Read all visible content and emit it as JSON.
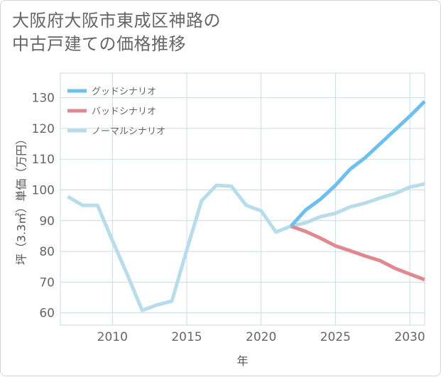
{
  "title": "大阪府大阪市東成区神路の\n中古戸建ての価格推移",
  "chart_data": {
    "type": "line",
    "title": "大阪府大阪市東成区神路の中古戸建ての価格推移",
    "xlabel": "年",
    "ylabel": "坪（3.3㎡）単価（万円）",
    "xlim": [
      2006.5,
      2031
    ],
    "ylim": [
      56,
      138
    ],
    "xticks": [
      2010,
      2015,
      2020,
      2025,
      2030
    ],
    "yticks": [
      60,
      70,
      80,
      90,
      100,
      110,
      120,
      130
    ],
    "grid": true,
    "legend_position": "top-left",
    "series": [
      {
        "name": "グッドシナリオ",
        "color": "#6dbfee",
        "x": [
          2022,
          2023,
          2024,
          2025,
          2026,
          2027,
          2028,
          2029,
          2030,
          2031
        ],
        "values": [
          88.2,
          93.5,
          97,
          101.5,
          106.8,
          110.5,
          115,
          119.5,
          124,
          128.8
        ]
      },
      {
        "name": "バッドシナリオ",
        "color": "#de8a90",
        "x": [
          2022,
          2023,
          2024,
          2025,
          2026,
          2027,
          2028,
          2029,
          2030,
          2031
        ],
        "values": [
          88.2,
          86.5,
          84.3,
          81.8,
          80.2,
          78.5,
          77,
          74.5,
          72.6,
          70.8
        ]
      },
      {
        "name": "ノーマルシナリオ",
        "color": "#b7dcea",
        "x": [
          2007,
          2008,
          2009,
          2010,
          2011,
          2012,
          2013,
          2014,
          2015,
          2016,
          2017,
          2018,
          2019,
          2020,
          2021,
          2022,
          2023,
          2024,
          2025,
          2026,
          2027,
          2028,
          2029,
          2030,
          2031
        ],
        "values": [
          97.8,
          95,
          95,
          83.5,
          72.5,
          60.8,
          62.6,
          63.8,
          80.5,
          96.5,
          101.5,
          101.2,
          95,
          93.2,
          86.3,
          88.2,
          89.3,
          91.3,
          92.4,
          94.5,
          95.7,
          97.4,
          98.8,
          100.9,
          102
        ]
      }
    ]
  }
}
